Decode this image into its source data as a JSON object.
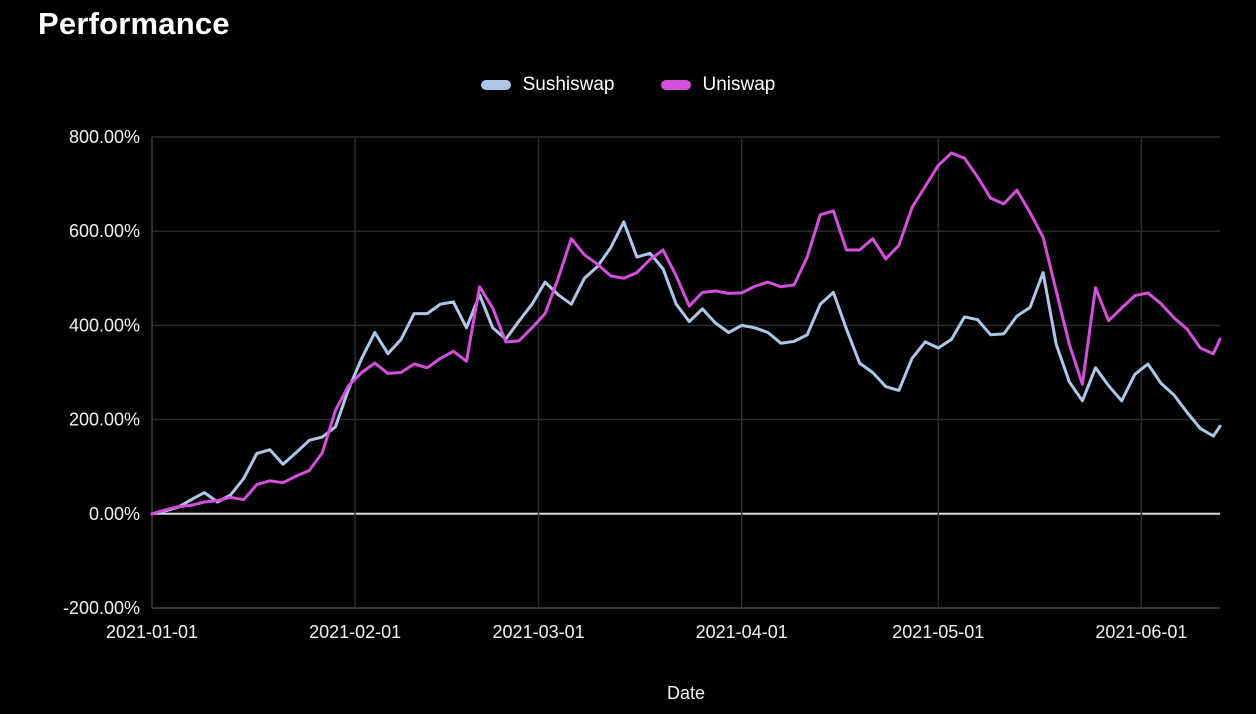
{
  "page": {
    "title": "Performance",
    "background": "#000000"
  },
  "legend": {
    "items": [
      {
        "label": "Sushiswap",
        "color": "#aec7e8"
      },
      {
        "label": "Uniswap",
        "color": "#d44fdb"
      }
    ]
  },
  "chart_data": {
    "type": "line",
    "title": "Performance",
    "xlabel": "Date",
    "ylabel": "",
    "x_unit": "days since 2021-01-01",
    "start_date": "2021-01-01",
    "end_date_approx": "2021-06-13",
    "ylim": [
      -200,
      800
    ],
    "xlim_days": [
      0,
      163
    ],
    "grid": true,
    "legend_position": "top-center",
    "background_color": "#000000",
    "grid_color": "#2e2e2e",
    "axis_line_color": "#3c3c3c",
    "zero_line_color": "#dcdcdc",
    "tick_label_color": "#f2f2f2",
    "y_ticks": {
      "values": [
        -200,
        0,
        200,
        400,
        600,
        800
      ],
      "labels": [
        "-200.00%",
        "0.00%",
        "200.00%",
        "400.00%",
        "600.00%",
        "800.00%"
      ]
    },
    "x_ticks": [
      {
        "day": 0,
        "label": "2021-01-01"
      },
      {
        "day": 31,
        "label": "2021-02-01"
      },
      {
        "day": 59,
        "label": "2021-03-01"
      },
      {
        "day": 90,
        "label": "2021-04-01"
      },
      {
        "day": 120,
        "label": "2021-05-01"
      },
      {
        "day": 151,
        "label": "2021-06-01"
      }
    ],
    "days": [
      0,
      2,
      4,
      6,
      8,
      10,
      12,
      14,
      16,
      18,
      20,
      22,
      24,
      26,
      28,
      30,
      32,
      34,
      36,
      38,
      40,
      42,
      44,
      46,
      48,
      50,
      52,
      54,
      56,
      58,
      60,
      62,
      64,
      66,
      68,
      70,
      72,
      74,
      76,
      78,
      80,
      82,
      84,
      86,
      88,
      90,
      92,
      94,
      96,
      98,
      100,
      102,
      104,
      106,
      108,
      110,
      112,
      114,
      116,
      118,
      120,
      122,
      124,
      126,
      128,
      130,
      132,
      134,
      136,
      138,
      140,
      142,
      144,
      146,
      148,
      150,
      152,
      154,
      156,
      158,
      160,
      162,
      163
    ],
    "series": [
      {
        "name": "Sushiswap",
        "color": "#aec7e8",
        "unit": "%",
        "values": [
          0,
          6,
          14,
          30,
          45,
          25,
          40,
          75,
          128,
          136,
          105,
          130,
          156,
          163,
          185,
          265,
          330,
          385,
          340,
          370,
          425,
          425,
          445,
          450,
          395,
          465,
          395,
          371,
          409,
          445,
          492,
          465,
          445,
          500,
          525,
          565,
          620,
          545,
          553,
          520,
          445,
          408,
          435,
          405,
          385,
          400,
          395,
          385,
          362,
          366,
          380,
          445,
          470,
          392,
          320,
          300,
          270,
          262,
          330,
          365,
          352,
          370,
          418,
          412,
          380,
          382,
          420,
          438,
          512,
          360,
          280,
          240,
          310,
          272,
          240,
          296,
          318,
          277,
          252,
          215,
          181,
          165,
          186
        ]
      },
      {
        "name": "Uniswap",
        "color": "#d44fdb",
        "unit": "%",
        "values": [
          0,
          8,
          15,
          18,
          25,
          28,
          35,
          30,
          62,
          70,
          66,
          80,
          92,
          130,
          220,
          272,
          300,
          320,
          298,
          300,
          318,
          310,
          330,
          345,
          324,
          482,
          437,
          365,
          367,
          395,
          425,
          500,
          584,
          550,
          530,
          505,
          500,
          512,
          540,
          560,
          505,
          441,
          470,
          473,
          468,
          469,
          483,
          492,
          482,
          486,
          545,
          635,
          643,
          560,
          560,
          584,
          541,
          570,
          650,
          695,
          740,
          766,
          755,
          715,
          670,
          658,
          687,
          640,
          587,
          473,
          360,
          275,
          480,
          410,
          437,
          463,
          469,
          446,
          416,
          392,
          352,
          340,
          371
        ]
      }
    ]
  }
}
